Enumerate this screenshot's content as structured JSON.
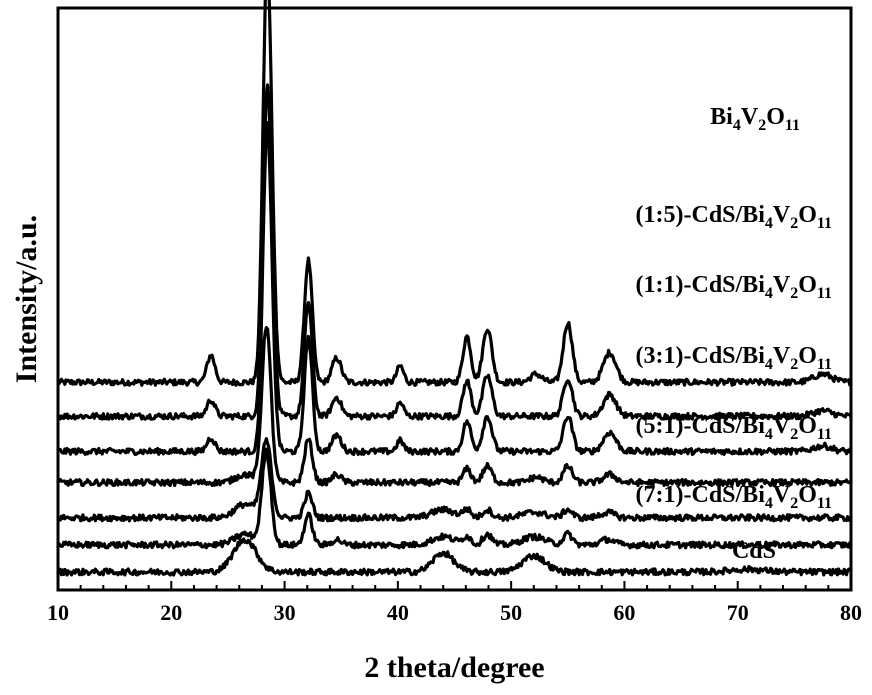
{
  "chart_data": {
    "type": "line",
    "xlabel": "2 theta/degree",
    "ylabel": "Intensity/a.u.",
    "xlim": [
      10,
      80
    ],
    "xticks": [
      10,
      20,
      30,
      40,
      50,
      60,
      70,
      80
    ],
    "grid": false,
    "legend": "inline labels on the right, above each trace",
    "series": [
      {
        "name": "Bi4V2O11",
        "label_parts": [
          [
            "Bi",
            "n"
          ],
          [
            "4",
            "s"
          ],
          [
            "V",
            "n"
          ],
          [
            "2",
            "s"
          ],
          [
            "O",
            "n"
          ],
          [
            "11",
            "s"
          ]
        ],
        "baseline": 0.7,
        "peaks": [
          [
            23.5,
            0.1,
            0.35
          ],
          [
            28.4,
            1.3,
            0.35
          ],
          [
            28.8,
            0.45,
            0.35
          ],
          [
            32.1,
            0.45,
            0.35
          ],
          [
            34.6,
            0.09,
            0.4
          ],
          [
            40.2,
            0.06,
            0.3
          ],
          [
            46.1,
            0.17,
            0.35
          ],
          [
            47.9,
            0.2,
            0.4
          ],
          [
            52.2,
            0.03,
            0.5
          ],
          [
            55.0,
            0.22,
            0.4
          ],
          [
            58.7,
            0.11,
            0.55
          ],
          [
            77.5,
            0.03,
            0.8
          ]
        ]
      },
      {
        "name": "(1:5)-CdS/Bi4V2O11",
        "label_parts": [
          [
            "(1:5)-CdS/Bi",
            "n"
          ],
          [
            "4",
            "s"
          ],
          [
            "V",
            "n"
          ],
          [
            "2",
            "s"
          ],
          [
            "O",
            "n"
          ],
          [
            "11",
            "s"
          ]
        ],
        "baseline": 0.575,
        "peaks": [
          [
            23.5,
            0.06,
            0.35
          ],
          [
            28.4,
            0.99,
            0.35
          ],
          [
            28.8,
            0.4,
            0.35
          ],
          [
            32.1,
            0.42,
            0.35
          ],
          [
            34.6,
            0.07,
            0.4
          ],
          [
            40.2,
            0.05,
            0.3
          ],
          [
            46.1,
            0.13,
            0.35
          ],
          [
            47.9,
            0.15,
            0.4
          ],
          [
            55.0,
            0.14,
            0.4
          ],
          [
            58.7,
            0.08,
            0.55
          ],
          [
            77.5,
            0.02,
            0.8
          ]
        ]
      },
      {
        "name": "(1:1)-CdS/Bi4V2O11",
        "label_parts": [
          [
            "(1:1)-CdS/Bi",
            "n"
          ],
          [
            "4",
            "s"
          ],
          [
            "V",
            "n"
          ],
          [
            "2",
            "s"
          ],
          [
            "O",
            "n"
          ],
          [
            "11",
            "s"
          ]
        ],
        "baseline": 0.445,
        "peaks": [
          [
            23.5,
            0.05,
            0.35
          ],
          [
            28.4,
            1.0,
            0.35
          ],
          [
            28.8,
            0.35,
            0.35
          ],
          [
            32.1,
            0.42,
            0.35
          ],
          [
            34.6,
            0.06,
            0.4
          ],
          [
            40.2,
            0.04,
            0.3
          ],
          [
            46.1,
            0.11,
            0.35
          ],
          [
            47.9,
            0.13,
            0.4
          ],
          [
            55.0,
            0.13,
            0.4
          ],
          [
            58.7,
            0.07,
            0.55
          ],
          [
            77.5,
            0.02,
            0.8
          ]
        ]
      },
      {
        "name": "(3:1)-CdS/Bi4V2O11",
        "label_parts": [
          [
            "(3:1)-CdS/Bi",
            "n"
          ],
          [
            "4",
            "s"
          ],
          [
            "V",
            "n"
          ],
          [
            "2",
            "s"
          ],
          [
            "O",
            "n"
          ],
          [
            "11",
            "s"
          ]
        ],
        "baseline": 0.33,
        "peaks": [
          [
            26.5,
            0.03,
            0.8
          ],
          [
            28.4,
            0.58,
            0.4
          ],
          [
            32.1,
            0.16,
            0.35
          ],
          [
            34.6,
            0.03,
            0.4
          ],
          [
            46.1,
            0.05,
            0.35
          ],
          [
            47.9,
            0.06,
            0.4
          ],
          [
            52.2,
            0.02,
            0.6
          ],
          [
            55.0,
            0.06,
            0.4
          ],
          [
            58.7,
            0.03,
            0.55
          ]
        ]
      },
      {
        "name": "(5:1)-CdS/Bi4V2O11",
        "label_parts": [
          [
            "(5:1)-CdS/Bi",
            "n"
          ],
          [
            "4",
            "s"
          ],
          [
            "V",
            "n"
          ],
          [
            "2",
            "s"
          ],
          [
            "O",
            "n"
          ],
          [
            "11",
            "s"
          ]
        ],
        "baseline": 0.2,
        "peaks": [
          [
            26.5,
            0.05,
            0.9
          ],
          [
            28.4,
            0.28,
            0.45
          ],
          [
            32.1,
            0.09,
            0.35
          ],
          [
            44.0,
            0.03,
            1.0
          ],
          [
            46.1,
            0.03,
            0.35
          ],
          [
            47.9,
            0.03,
            0.4
          ],
          [
            52.0,
            0.02,
            1.0
          ],
          [
            55.0,
            0.03,
            0.4
          ],
          [
            58.5,
            0.02,
            0.6
          ]
        ]
      },
      {
        "name": "(7:1)-CdS/Bi4V2O11",
        "label_parts": [
          [
            "(7:1)-CdS/Bi",
            "n"
          ],
          [
            "4",
            "s"
          ],
          [
            "V",
            "n"
          ],
          [
            "2",
            "s"
          ],
          [
            "O",
            "n"
          ],
          [
            "11",
            "s"
          ]
        ],
        "baseline": 0.1,
        "peaks": [
          [
            26.5,
            0.04,
            0.9
          ],
          [
            28.4,
            0.34,
            0.4
          ],
          [
            32.1,
            0.11,
            0.35
          ],
          [
            34.6,
            0.02,
            0.4
          ],
          [
            44.0,
            0.03,
            1.0
          ],
          [
            46.1,
            0.03,
            0.35
          ],
          [
            47.9,
            0.04,
            0.4
          ],
          [
            52.0,
            0.03,
            1.0
          ],
          [
            55.0,
            0.04,
            0.4
          ],
          [
            58.5,
            0.02,
            0.6
          ]
        ]
      },
      {
        "name": "CdS",
        "label_parts": [
          [
            "CdS",
            "n"
          ]
        ],
        "baseline": 0.0,
        "peaks": [
          [
            26.5,
            0.12,
            1.0
          ],
          [
            44.0,
            0.07,
            0.9
          ],
          [
            52.0,
            0.06,
            1.0
          ],
          [
            70.8,
            0.01,
            1.5
          ]
        ]
      }
    ]
  }
}
